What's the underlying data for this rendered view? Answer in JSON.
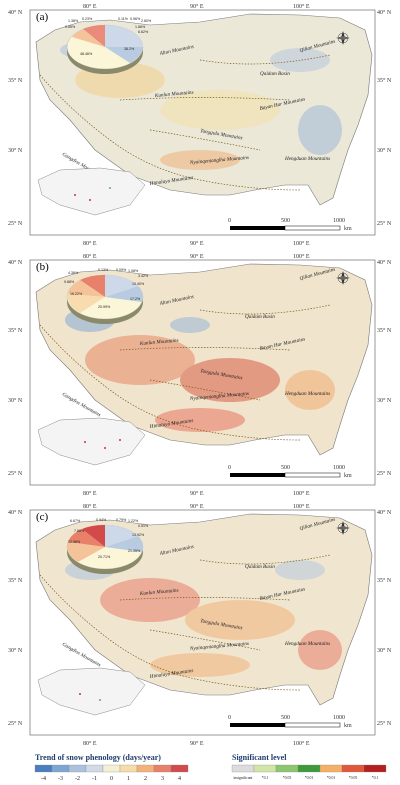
{
  "panels": [
    {
      "label": "(a)",
      "lon_ticks": [
        "80° E",
        "90° E",
        "100° E"
      ],
      "lat_ticks": [
        "40° N",
        "35° N",
        "30° N",
        "25° N"
      ],
      "mountains": [
        "Altun Mountains",
        "Qilian Mountains",
        "Qaidam Basin",
        "Kunlun Mountains",
        "Bayan Har Mountains",
        "Tanggula Mountains",
        "Gangdise Mountains",
        "Nyainqentanglha Mountains",
        "Hengduan Mountains",
        "Himalaya Mountains"
      ],
      "pie_labels": [
        "1.38%",
        "0.23%",
        "0.11%",
        "0.96%",
        "2.60%",
        "0.55%",
        "1.86%",
        "6.62%",
        "38.2%",
        "48.46%"
      ],
      "scale": {
        "labels": [
          "0",
          "500",
          "1000"
        ],
        "unit": "km"
      }
    },
    {
      "label": "(b)",
      "lon_ticks": [
        "80° E",
        "90° E",
        "100° E"
      ],
      "lat_ticks": [
        "40° N",
        "35° N",
        "30° N",
        "25° N"
      ],
      "mountains": [
        "Altun Mountains",
        "Qilian Mountains",
        "Qaidam Basin",
        "Kunlun Mountains",
        "Bayan Har Mountains",
        "Tanggula Mountains",
        "Gangdise Mountains",
        "Nyainqentanglha Mountains",
        "Hengduan Mountains",
        "Himalaya Mountains"
      ],
      "pie_labels": [
        "4.36%",
        "0.13%",
        "0.09%",
        "1.08%",
        "3.42%",
        "9.88%",
        "10.40%",
        "16.22%",
        "17.2%",
        "20.99%"
      ],
      "scale": {
        "labels": [
          "0",
          "500",
          "1000"
        ],
        "unit": "km"
      }
    },
    {
      "label": "(c)",
      "lon_ticks": [
        "80° E",
        "90° E",
        "100° E"
      ],
      "lat_ticks": [
        "40° N",
        "35° N",
        "30° N",
        "25° N"
      ],
      "mountains": [
        "Altun Mountains",
        "Qilian Mountains",
        "Qaidam Basin",
        "Kunlun Mountains",
        "Bayan Har Mountains",
        "Tanggula Mountains",
        "Gangdise Mountains",
        "Nyainqentanglha Mountains",
        "Hengduan Mountains",
        "Himalaya Mountains"
      ],
      "pie_labels": [
        "6.67%",
        "0.94%",
        "0.79%",
        "1.22%",
        "0.51%",
        "7.88%",
        "13.92%",
        "12.58%",
        "20.71%",
        "21.35%"
      ],
      "scale": {
        "labels": [
          "0",
          "500",
          "1000"
        ],
        "unit": "km"
      }
    }
  ],
  "legend": {
    "trend_title": "Trend of snow phenology (days/year)",
    "trend_ticks": [
      "-4",
      "-3",
      "-2",
      "-1",
      "0",
      "1",
      "2",
      "3",
      "4"
    ],
    "trend_colors": [
      "#4a7fbf",
      "#7ea6d3",
      "#a9c2dd",
      "#cfdbe6",
      "#f3efd3",
      "#f6dca8",
      "#f2b27a",
      "#e8806a",
      "#d24a4a"
    ],
    "sig_title": "Significant level",
    "sig_labels": [
      "insignificant",
      "*0.1",
      "*0.05",
      "*0.01",
      "*0.01",
      "*0.05",
      "*0.1"
    ],
    "sig_colors": [
      "#dcdcdc",
      "#cfe6a6",
      "#8cc66e",
      "#3e9a3a",
      "#f5b065",
      "#e0573a",
      "#b51f1f"
    ]
  }
}
